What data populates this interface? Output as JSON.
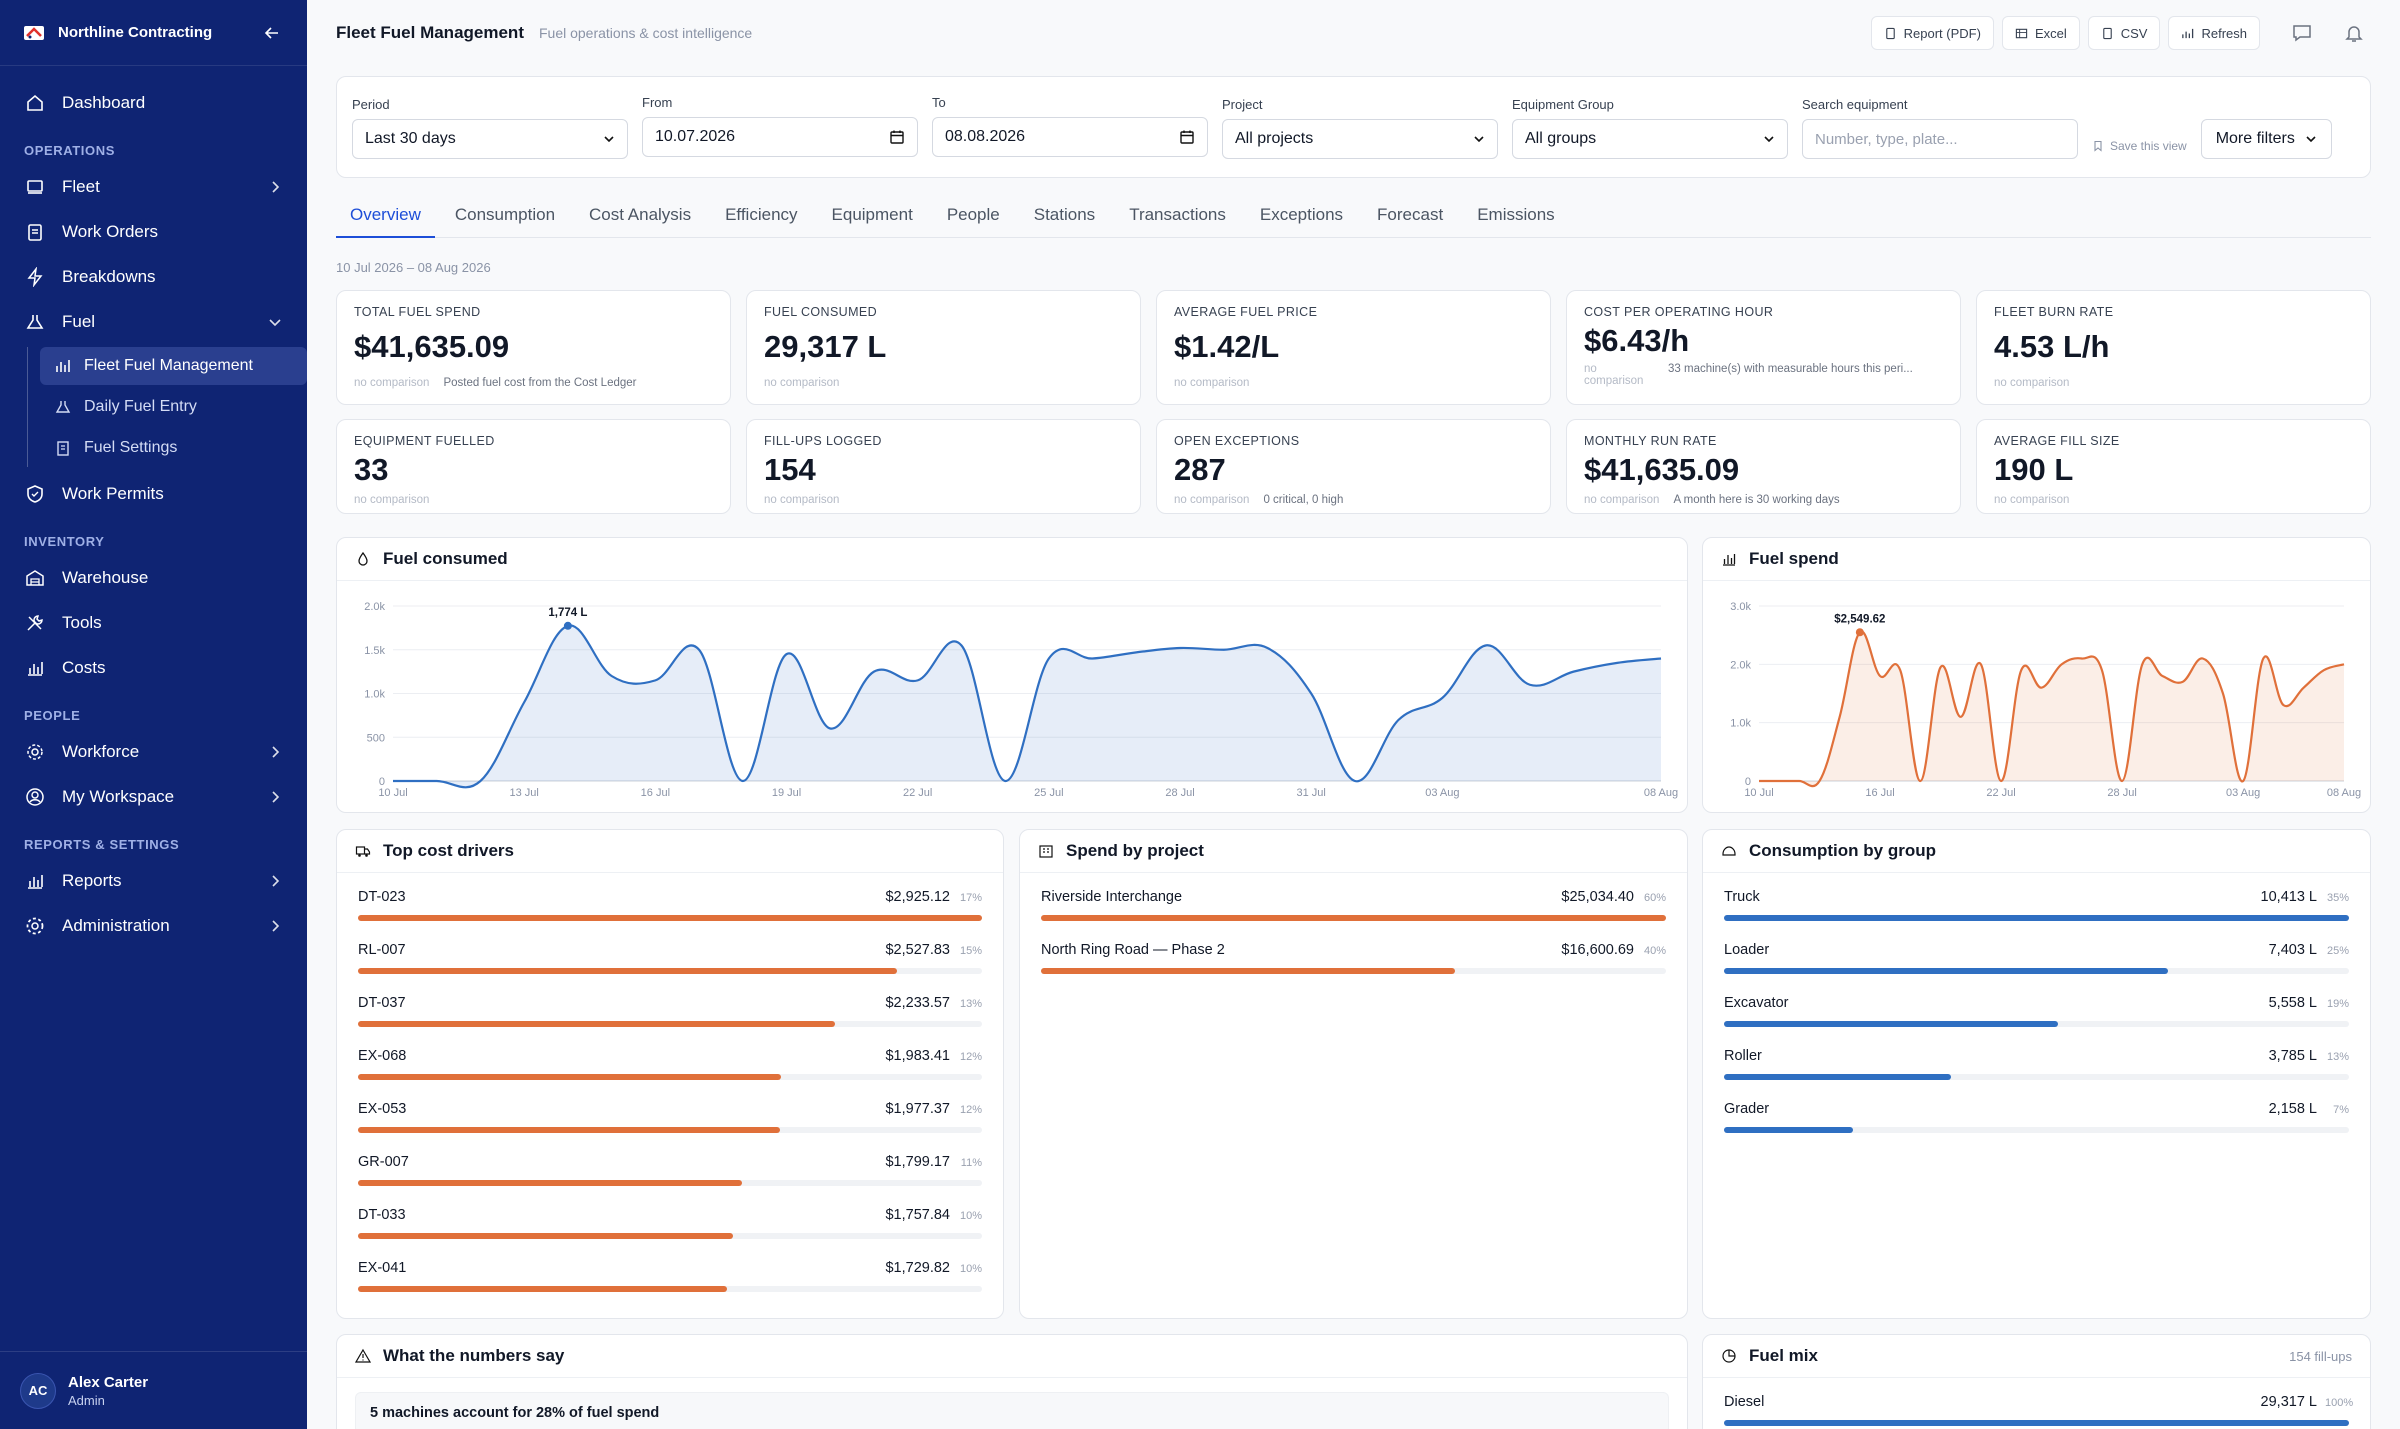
{
  "app": {
    "brand": "Northline Contracting",
    "accent": "#1d4ed8",
    "sidebar_bg": "#0f2473"
  },
  "sidebar": {
    "dashboard": "Dashboard",
    "sections": {
      "operations": "OPERATIONS",
      "inventory": "INVENTORY",
      "people": "PEOPLE",
      "reports": "REPORTS & SETTINGS"
    },
    "operations": [
      "Fleet",
      "Work Orders",
      "Breakdowns",
      "Fuel"
    ],
    "fuel_sub": [
      "Fleet Fuel Management",
      "Daily Fuel Entry",
      "Fuel Settings"
    ],
    "work_permits": "Work Permits",
    "inventory": [
      "Warehouse",
      "Tools",
      "Costs"
    ],
    "people": [
      "Workforce",
      "My Workspace"
    ],
    "reports": [
      "Reports",
      "Administration"
    ]
  },
  "user": {
    "initials": "AC",
    "name": "Alex Carter",
    "role": "Admin"
  },
  "header": {
    "title": "Fleet Fuel Management",
    "subtitle": "Fuel operations & cost intelligence",
    "buttons": {
      "pdf": "Report (PDF)",
      "excel": "Excel",
      "csv": "CSV",
      "refresh": "Refresh"
    }
  },
  "filters": {
    "period_label": "Period",
    "period_value": "Last 30 days",
    "from_label": "From",
    "from_value": "10.07.2026",
    "to_label": "To",
    "to_value": "08.08.2026",
    "project_label": "Project",
    "project_value": "All projects",
    "group_label": "Equipment Group",
    "group_value": "All groups",
    "search_label": "Search equipment",
    "search_placeholder": "Number, type, plate...",
    "save_view": "Save this view",
    "more_filters": "More filters"
  },
  "tabs": [
    "Overview",
    "Consumption",
    "Cost Analysis",
    "Efficiency",
    "Equipment",
    "People",
    "Stations",
    "Transactions",
    "Exceptions",
    "Forecast",
    "Emissions"
  ],
  "date_range": "10 Jul 2026 – 08 Aug 2026",
  "kpis": [
    {
      "label": "TOTAL FUEL SPEND",
      "value": "$41,635.09",
      "foot": "no comparison",
      "note": "Posted fuel cost from the Cost Ledger"
    },
    {
      "label": "FUEL CONSUMED",
      "value": "29,317 L",
      "foot": "no comparison",
      "note": ""
    },
    {
      "label": "AVERAGE FUEL PRICE",
      "value": "$1.42/L",
      "foot": "no comparison",
      "note": ""
    },
    {
      "label": "COST PER OPERATING HOUR",
      "value": "$6.43/h",
      "foot": "no comparison",
      "note": "33 machine(s) with measurable hours this peri..."
    },
    {
      "label": "FLEET BURN RATE",
      "value": "4.53 L/h",
      "foot": "no comparison",
      "note": ""
    },
    {
      "label": "EQUIPMENT FUELLED",
      "value": "33",
      "foot": "no comparison",
      "note": ""
    },
    {
      "label": "FILL-UPS LOGGED",
      "value": "154",
      "foot": "no comparison",
      "note": ""
    },
    {
      "label": "OPEN EXCEPTIONS",
      "value": "287",
      "foot": "no comparison",
      "note": "0 critical, 0 high"
    },
    {
      "label": "MONTHLY RUN RATE",
      "value": "$41,635.09",
      "foot": "no comparison",
      "note": "A month here is 30 working days"
    },
    {
      "label": "AVERAGE FILL SIZE",
      "value": "190 L",
      "foot": "no comparison",
      "note": ""
    }
  ],
  "cards": {
    "fuel_consumed": "Fuel consumed",
    "fuel_spend": "Fuel spend",
    "top_cost": "Top cost drivers",
    "spend_project": "Spend by project",
    "consumption_group": "Consumption by group",
    "numbers_say": "What the numbers say",
    "numbers_insight": "5 machines account for 28% of fuel spend",
    "fuel_mix": "Fuel mix",
    "fuel_mix_meta": "154 fill-ups"
  },
  "chart_data": [
    {
      "type": "area",
      "title": "Fuel consumed",
      "x": [
        "10 Jul",
        "11 Jul",
        "12 Jul",
        "13 Jul",
        "14 Jul",
        "15 Jul",
        "16 Jul",
        "17 Jul",
        "18 Jul",
        "19 Jul",
        "20 Jul",
        "21 Jul",
        "22 Jul",
        "23 Jul",
        "24 Jul",
        "25 Jul",
        "26 Jul",
        "27 Jul",
        "28 Jul",
        "29 Jul",
        "30 Jul",
        "31 Jul",
        "01 Aug",
        "02 Aug",
        "03 Aug",
        "04 Aug",
        "05 Aug",
        "06 Aug",
        "07 Aug",
        "08 Aug"
      ],
      "x_ticks": [
        "10 Jul",
        "13 Jul",
        "16 Jul",
        "19 Jul",
        "22 Jul",
        "25 Jul",
        "28 Jul",
        "31 Jul",
        "03 Aug",
        "08 Aug"
      ],
      "values": [
        0,
        0,
        0,
        900,
        1774,
        1200,
        1150,
        1500,
        0,
        1450,
        600,
        1250,
        1150,
        1550,
        0,
        1400,
        1400,
        1470,
        1520,
        1500,
        1520,
        1000,
        0,
        700,
        950,
        1550,
        1100,
        1250,
        1350,
        1400
      ],
      "y_ticks": [
        "0",
        "500",
        "1.0k",
        "1.5k",
        "2.0k"
      ],
      "ylim": [
        0,
        2000
      ],
      "peak_label": "1,774 L",
      "color": "#2f6fc2"
    },
    {
      "type": "area",
      "title": "Fuel spend",
      "x": [
        "10 Jul",
        "11 Jul",
        "12 Jul",
        "13 Jul",
        "14 Jul",
        "15 Jul",
        "16 Jul",
        "17 Jul",
        "18 Jul",
        "19 Jul",
        "20 Jul",
        "21 Jul",
        "22 Jul",
        "23 Jul",
        "24 Jul",
        "25 Jul",
        "26 Jul",
        "27 Jul",
        "28 Jul",
        "29 Jul",
        "30 Jul",
        "31 Jul",
        "01 Aug",
        "02 Aug",
        "03 Aug",
        "04 Aug",
        "05 Aug",
        "06 Aug",
        "07 Aug",
        "08 Aug"
      ],
      "x_ticks": [
        "10 Jul",
        "16 Jul",
        "22 Jul",
        "28 Jul",
        "03 Aug",
        "08 Aug"
      ],
      "values": [
        0,
        0,
        0,
        0,
        1100,
        2550,
        1800,
        1900,
        0,
        1950,
        1100,
        2000,
        0,
        1900,
        1600,
        2000,
        2100,
        1900,
        0,
        2000,
        1800,
        1700,
        2100,
        1500,
        0,
        2100,
        1300,
        1600,
        1900,
        2000
      ],
      "y_ticks": [
        "0",
        "1.0k",
        "2.0k",
        "3.0k"
      ],
      "ylim": [
        0,
        3000
      ],
      "peak_label": "$2,549.62",
      "color": "#e0703a"
    }
  ],
  "top_cost_drivers": [
    {
      "label": "DT-023",
      "value": "$2,925.12",
      "pct": "17%",
      "frac": 1.0
    },
    {
      "label": "RL-007",
      "value": "$2,527.83",
      "pct": "15%",
      "frac": 0.864
    },
    {
      "label": "DT-037",
      "value": "$2,233.57",
      "pct": "13%",
      "frac": 0.764
    },
    {
      "label": "EX-068",
      "value": "$1,983.41",
      "pct": "12%",
      "frac": 0.678
    },
    {
      "label": "EX-053",
      "value": "$1,977.37",
      "pct": "12%",
      "frac": 0.676
    },
    {
      "label": "GR-007",
      "value": "$1,799.17",
      "pct": "11%",
      "frac": 0.615
    },
    {
      "label": "DT-033",
      "value": "$1,757.84",
      "pct": "10%",
      "frac": 0.601
    },
    {
      "label": "EX-041",
      "value": "$1,729.82",
      "pct": "10%",
      "frac": 0.591
    }
  ],
  "spend_by_project": [
    {
      "label": "Riverside Interchange",
      "value": "$25,034.40",
      "pct": "60%",
      "frac": 1.0
    },
    {
      "label": "North Ring Road — Phase 2",
      "value": "$16,600.69",
      "pct": "40%",
      "frac": 0.663
    }
  ],
  "consumption_by_group": [
    {
      "label": "Truck",
      "value": "10,413 L",
      "pct": "35%",
      "frac": 1.0
    },
    {
      "label": "Loader",
      "value": "7,403 L",
      "pct": "25%",
      "frac": 0.711
    },
    {
      "label": "Excavator",
      "value": "5,558 L",
      "pct": "19%",
      "frac": 0.534
    },
    {
      "label": "Roller",
      "value": "3,785 L",
      "pct": "13%",
      "frac": 0.363
    },
    {
      "label": "Grader",
      "value": "2,158 L",
      "pct": "7%",
      "frac": 0.207
    }
  ],
  "fuel_mix": [
    {
      "label": "Diesel",
      "value": "29,317 L",
      "pct": "100%",
      "frac": 1.0
    }
  ]
}
